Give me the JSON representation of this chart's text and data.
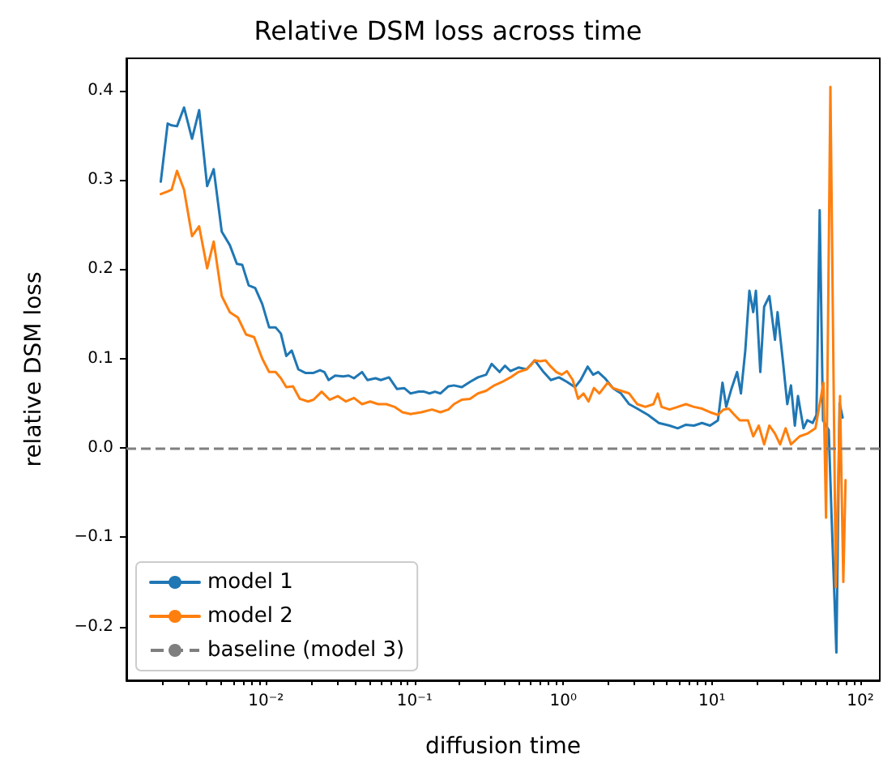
{
  "chart_data": {
    "type": "line",
    "title": "Relative DSM loss across time",
    "xlabel": "diffusion time",
    "ylabel": "relative DSM loss",
    "log": "x",
    "grid": false,
    "legend": "bottom left",
    "marker": "none",
    "xlim": [
      0.00115,
      135
    ],
    "ylim": [
      -0.26,
      0.436
    ],
    "xticks": [
      {
        "value": 0.002,
        "label": null
      },
      {
        "value": 0.003,
        "label": null
      },
      {
        "value": 0.004,
        "label": null
      },
      {
        "value": 0.005,
        "label": null
      },
      {
        "value": 0.006,
        "label": null
      },
      {
        "value": 0.007,
        "label": null
      },
      {
        "value": 0.008,
        "label": null
      },
      {
        "value": 0.009,
        "label": null
      },
      {
        "value": 0.01,
        "label": "10⁻²"
      },
      {
        "value": 0.02,
        "label": null
      },
      {
        "value": 0.03,
        "label": null
      },
      {
        "value": 0.04,
        "label": null
      },
      {
        "value": 0.05,
        "label": null
      },
      {
        "value": 0.06,
        "label": null
      },
      {
        "value": 0.07,
        "label": null
      },
      {
        "value": 0.08,
        "label": null
      },
      {
        "value": 0.09,
        "label": null
      },
      {
        "value": 0.1,
        "label": "10⁻¹"
      },
      {
        "value": 0.2,
        "label": null
      },
      {
        "value": 0.3,
        "label": null
      },
      {
        "value": 0.4,
        "label": null
      },
      {
        "value": 0.5,
        "label": null
      },
      {
        "value": 0.6,
        "label": null
      },
      {
        "value": 0.7,
        "label": null
      },
      {
        "value": 0.8,
        "label": null
      },
      {
        "value": 0.9,
        "label": null
      },
      {
        "value": 1,
        "label": "10⁰"
      },
      {
        "value": 2,
        "label": null
      },
      {
        "value": 3,
        "label": null
      },
      {
        "value": 4,
        "label": null
      },
      {
        "value": 5,
        "label": null
      },
      {
        "value": 6,
        "label": null
      },
      {
        "value": 7,
        "label": null
      },
      {
        "value": 8,
        "label": null
      },
      {
        "value": 9,
        "label": null
      },
      {
        "value": 10,
        "label": "10¹"
      },
      {
        "value": 20,
        "label": null
      },
      {
        "value": 30,
        "label": null
      },
      {
        "value": 40,
        "label": null
      },
      {
        "value": 50,
        "label": null
      },
      {
        "value": 60,
        "label": null
      },
      {
        "value": 70,
        "label": null
      },
      {
        "value": 80,
        "label": null
      },
      {
        "value": 90,
        "label": null
      },
      {
        "value": 100,
        "label": "10²"
      }
    ],
    "yticks": [
      {
        "value": -0.2,
        "label": "−0.2"
      },
      {
        "value": -0.1,
        "label": "−0.1"
      },
      {
        "value": 0,
        "label": "0.0"
      },
      {
        "value": 0.1,
        "label": "0.1"
      },
      {
        "value": 0.2,
        "label": "0.2"
      },
      {
        "value": 0.3,
        "label": "0.3"
      },
      {
        "value": 0.4,
        "label": "0.4"
      }
    ],
    "ref_lines": [
      {
        "axis": "y",
        "value": 0,
        "label": "baseline (model 3)",
        "color": "#7f7f7f",
        "line_style": "dashed"
      }
    ],
    "series": [
      {
        "name": "model 1",
        "color": "#1f77b4",
        "line_style": "solid",
        "x": [
          0.00196,
          0.00218,
          0.00232,
          0.00252,
          0.00281,
          0.00318,
          0.00355,
          0.00402,
          0.00445,
          0.00504,
          0.00571,
          0.00637,
          0.00692,
          0.00765,
          0.00846,
          0.00944,
          0.0105,
          0.0116,
          0.0126,
          0.0137,
          0.0149,
          0.0165,
          0.0184,
          0.0209,
          0.0231,
          0.0247,
          0.0264,
          0.0292,
          0.0331,
          0.036,
          0.0391,
          0.0443,
          0.0482,
          0.0546,
          0.0593,
          0.0673,
          0.0762,
          0.0851,
          0.094,
          0.1066,
          0.116,
          0.126,
          0.137,
          0.149,
          0.169,
          0.184,
          0.208,
          0.236,
          0.267,
          0.303,
          0.33,
          0.373,
          0.406,
          0.442,
          0.5,
          0.567,
          0.643,
          0.729,
          0.826,
          0.937,
          1.06,
          1.2,
          1.31,
          1.46,
          1.59,
          1.72,
          1.91,
          2.16,
          2.45,
          2.78,
          3.15,
          3.72,
          4.4,
          5.2,
          5.9,
          6.69,
          7.58,
          8.59,
          9.73,
          11.0,
          11.8,
          12.5,
          13.6,
          14.8,
          15.7,
          16.8,
          17.9,
          19.0,
          19.8,
          21.2,
          22.5,
          24.4,
          26.6,
          27.7,
          30.1,
          32.2,
          34.1,
          36.2,
          38.0,
          41.4,
          43.9,
          47.7,
          50.6,
          53.2,
          56.0,
          61.2,
          64.0,
          68.9,
          72.4,
          75.9
        ],
        "values": [
          0.298,
          0.363,
          0.361,
          0.36,
          0.381,
          0.346,
          0.378,
          0.293,
          0.312,
          0.242,
          0.227,
          0.206,
          0.205,
          0.182,
          0.179,
          0.161,
          0.135,
          0.135,
          0.128,
          0.103,
          0.109,
          0.088,
          0.084,
          0.084,
          0.087,
          0.085,
          0.076,
          0.081,
          0.08,
          0.081,
          0.078,
          0.085,
          0.076,
          0.078,
          0.076,
          0.079,
          0.066,
          0.067,
          0.061,
          0.063,
          0.063,
          0.061,
          0.063,
          0.061,
          0.069,
          0.07,
          0.068,
          0.074,
          0.079,
          0.082,
          0.094,
          0.085,
          0.092,
          0.086,
          0.09,
          0.088,
          0.098,
          0.086,
          0.076,
          0.079,
          0.074,
          0.068,
          0.076,
          0.091,
          0.082,
          0.085,
          0.078,
          0.067,
          0.061,
          0.049,
          0.044,
          0.037,
          0.028,
          0.025,
          0.022,
          0.026,
          0.025,
          0.028,
          0.025,
          0.031,
          0.073,
          0.046,
          0.067,
          0.085,
          0.061,
          0.109,
          0.176,
          0.152,
          0.176,
          0.085,
          0.158,
          0.17,
          0.121,
          0.152,
          0.097,
          0.049,
          0.07,
          0.025,
          0.058,
          0.022,
          0.031,
          0.028,
          0.037,
          0.266,
          0.031,
          0.02,
          -0.078,
          -0.229,
          0.05,
          0.034
        ]
      },
      {
        "name": "model 2",
        "color": "#ff7f0e",
        "line_style": "solid",
        "x": [
          0.00196,
          0.00218,
          0.00232,
          0.00252,
          0.00281,
          0.00318,
          0.00355,
          0.00402,
          0.00445,
          0.00504,
          0.00571,
          0.00647,
          0.00734,
          0.00832,
          0.00944,
          0.0105,
          0.0116,
          0.0126,
          0.0137,
          0.0152,
          0.0169,
          0.0192,
          0.0209,
          0.0237,
          0.0268,
          0.0304,
          0.0345,
          0.0391,
          0.0443,
          0.0502,
          0.0569,
          0.0646,
          0.0732,
          0.0829,
          0.094,
          0.111,
          0.131,
          0.149,
          0.169,
          0.184,
          0.208,
          0.236,
          0.267,
          0.303,
          0.344,
          0.389,
          0.442,
          0.5,
          0.567,
          0.616,
          0.643,
          0.7,
          0.761,
          0.826,
          0.899,
          0.977,
          1.06,
          1.16,
          1.26,
          1.37,
          1.48,
          1.61,
          1.75,
          1.99,
          2.16,
          2.45,
          2.78,
          3.15,
          3.57,
          4.05,
          4.33,
          4.59,
          5.2,
          5.9,
          6.69,
          7.58,
          8.59,
          9.73,
          11.0,
          12.0,
          13.0,
          14.2,
          15.4,
          17.5,
          19.0,
          20.7,
          22.5,
          24.4,
          26.6,
          28.8,
          31.4,
          34.1,
          39.0,
          43.9,
          49.8,
          56.4,
          58.7,
          62.8,
          68.3,
          72.9,
          76.7,
          79.4
        ],
        "values": [
          0.284,
          0.287,
          0.289,
          0.31,
          0.289,
          0.237,
          0.248,
          0.201,
          0.231,
          0.17,
          0.152,
          0.146,
          0.127,
          0.124,
          0.1,
          0.085,
          0.085,
          0.078,
          0.068,
          0.069,
          0.055,
          0.052,
          0.054,
          0.063,
          0.054,
          0.058,
          0.052,
          0.056,
          0.049,
          0.052,
          0.049,
          0.049,
          0.046,
          0.04,
          0.038,
          0.04,
          0.043,
          0.04,
          0.043,
          0.049,
          0.054,
          0.055,
          0.061,
          0.064,
          0.07,
          0.074,
          0.079,
          0.085,
          0.088,
          0.094,
          0.098,
          0.097,
          0.098,
          0.091,
          0.085,
          0.082,
          0.086,
          0.076,
          0.055,
          0.061,
          0.052,
          0.067,
          0.061,
          0.073,
          0.067,
          0.064,
          0.061,
          0.049,
          0.046,
          0.049,
          0.061,
          0.046,
          0.043,
          0.046,
          0.049,
          0.046,
          0.044,
          0.04,
          0.037,
          0.043,
          0.044,
          0.037,
          0.031,
          0.031,
          0.013,
          0.025,
          0.004,
          0.025,
          0.016,
          0.004,
          0.022,
          0.004,
          0.013,
          0.016,
          0.022,
          0.073,
          -0.078,
          0.404,
          -0.156,
          0.058,
          -0.15,
          -0.036
        ]
      }
    ]
  }
}
